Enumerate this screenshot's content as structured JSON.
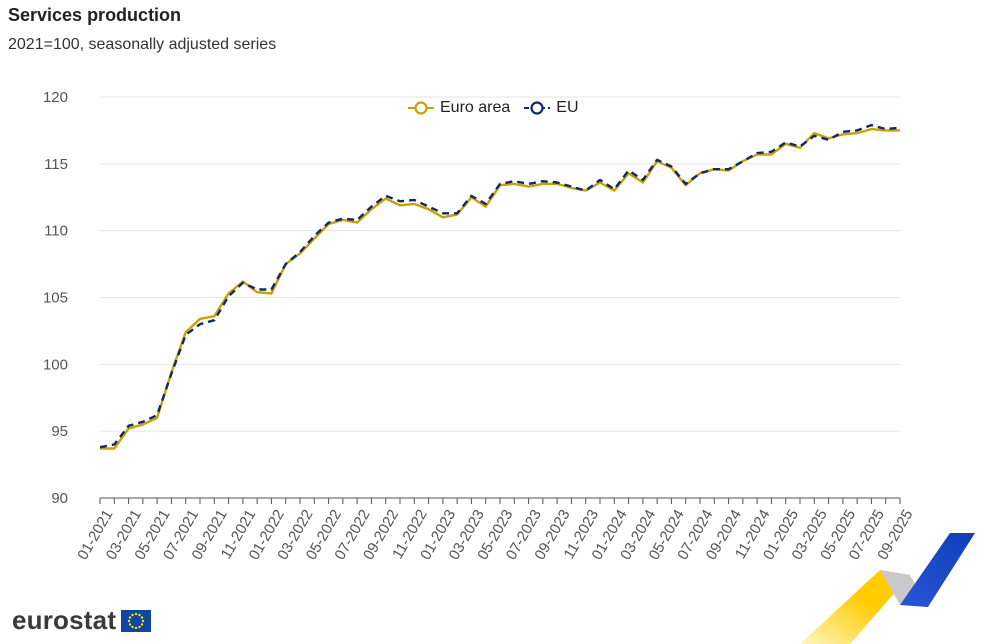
{
  "header": {
    "title": "Services production",
    "subtitle": "2021=100, seasonally adjusted series"
  },
  "brand": {
    "name": "eurostat"
  },
  "colors": {
    "euro_area": "#c8a200",
    "eu": "#0e2a6b",
    "grid": "#e6e6e6"
  },
  "chart_data": {
    "type": "line",
    "ylim": [
      90,
      120
    ],
    "yticks": [
      90,
      95,
      100,
      105,
      110,
      115,
      120
    ],
    "grid": true,
    "legend_position": "top-center",
    "x": [
      "01-2021",
      "02-2021",
      "03-2021",
      "04-2021",
      "05-2021",
      "06-2021",
      "07-2021",
      "08-2021",
      "09-2021",
      "10-2021",
      "11-2021",
      "12-2021",
      "01-2022",
      "02-2022",
      "03-2022",
      "04-2022",
      "05-2022",
      "06-2022",
      "07-2022",
      "08-2022",
      "09-2022",
      "10-2022",
      "11-2022",
      "12-2022",
      "01-2023",
      "02-2023",
      "03-2023",
      "04-2023",
      "05-2023",
      "06-2023",
      "07-2023",
      "08-2023",
      "09-2023",
      "10-2023",
      "11-2023",
      "12-2023",
      "01-2024",
      "02-2024",
      "03-2024",
      "04-2024",
      "05-2024",
      "06-2024",
      "07-2024",
      "08-2024",
      "09-2024",
      "10-2024",
      "11-2024",
      "12-2024",
      "01-2025",
      "02-2025",
      "03-2025",
      "04-2025",
      "05-2025",
      "06-2025",
      "07-2025",
      "08-2025",
      "09-2025"
    ],
    "xtick_labels": [
      "01-2021",
      "03-2021",
      "05-2021",
      "07-2021",
      "09-2021",
      "11-2021",
      "01-2022",
      "03-2022",
      "05-2022",
      "07-2022",
      "09-2022",
      "11-2022",
      "01-2023",
      "03-2023",
      "05-2023",
      "07-2023",
      "09-2023",
      "11-2023",
      "01-2024",
      "03-2024",
      "05-2024",
      "07-2024",
      "09-2024",
      "11-2024",
      "01-2025",
      "03-2025",
      "05-2025",
      "07-2025",
      "09-2025"
    ],
    "series": [
      {
        "name": "Euro area",
        "values": [
          93.7,
          93.7,
          95.2,
          95.5,
          96.0,
          99.4,
          102.4,
          103.4,
          103.6,
          105.3,
          106.2,
          105.4,
          105.3,
          107.5,
          108.3,
          109.4,
          110.5,
          110.8,
          110.6,
          111.6,
          112.4,
          111.9,
          112.0,
          111.6,
          111.0,
          111.2,
          112.5,
          111.8,
          113.4,
          113.5,
          113.3,
          113.5,
          113.5,
          113.2,
          113.0,
          113.6,
          113.0,
          114.3,
          113.6,
          115.2,
          114.7,
          113.4,
          114.3,
          114.6,
          114.5,
          115.2,
          115.7,
          115.7,
          116.5,
          116.2,
          117.3,
          116.9,
          117.2,
          117.3,
          117.6,
          117.5,
          117.5
        ],
        "color": "#c8a200"
      },
      {
        "name": "EU",
        "values": [
          93.8,
          94.0,
          95.4,
          95.7,
          96.2,
          99.3,
          102.2,
          103.0,
          103.3,
          105.1,
          106.1,
          105.6,
          105.6,
          107.5,
          108.4,
          109.6,
          110.6,
          110.9,
          110.8,
          111.8,
          112.6,
          112.2,
          112.3,
          111.8,
          111.3,
          111.3,
          112.6,
          112.0,
          113.5,
          113.7,
          113.5,
          113.7,
          113.6,
          113.3,
          113.0,
          113.8,
          113.1,
          114.5,
          113.8,
          115.3,
          114.8,
          113.5,
          114.3,
          114.6,
          114.6,
          115.2,
          115.8,
          115.9,
          116.6,
          116.3,
          117.1,
          116.8,
          117.4,
          117.5,
          117.9,
          117.6,
          117.7
        ],
        "color": "#0e2a6b"
      }
    ]
  }
}
